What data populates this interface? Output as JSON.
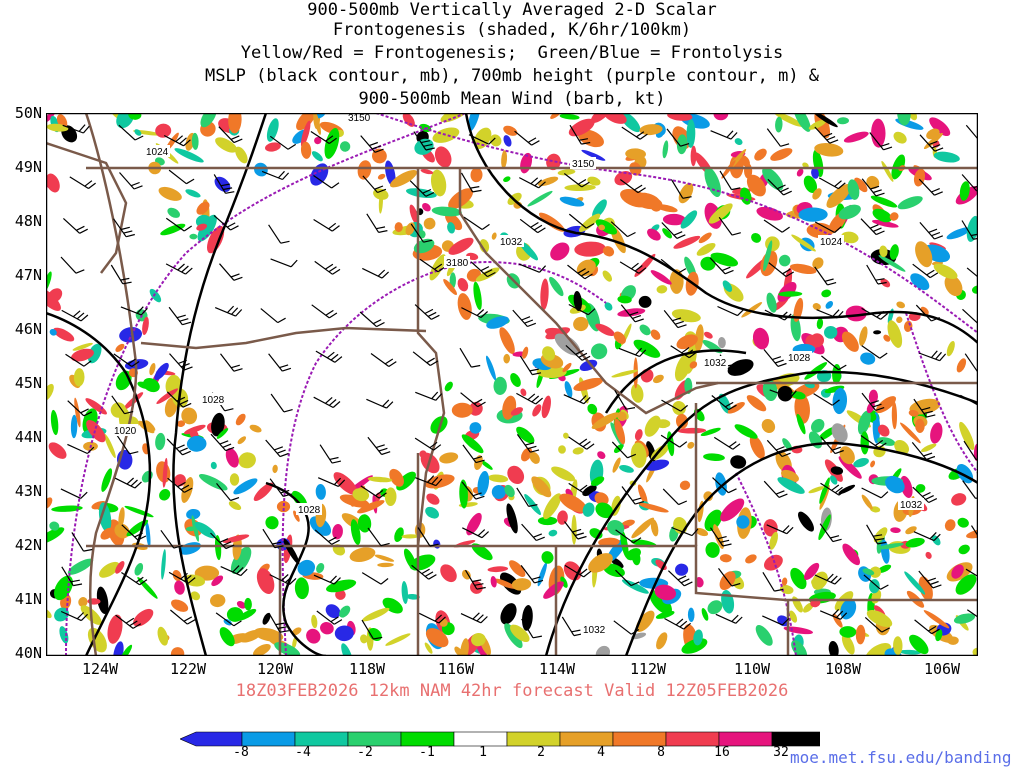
{
  "title": {
    "line1": "900-500mb Vertically Averaged 2-D Scalar",
    "line2": "Frontogenesis (shaded, K/6hr/100km)",
    "line3": "Yellow/Red = Frontogenesis;  Green/Blue = Frontolysis",
    "line4": "MSLP (black contour, mb), 700mb height (purple contour, m) &",
    "line5": "900-500mb Mean Wind (barb, kt)"
  },
  "subtitle": "18Z03FEB2026 12km NAM 42hr forecast Valid 12Z05FEB2026",
  "lat_labels": [
    "50N",
    "49N",
    "48N",
    "47N",
    "46N",
    "45N",
    "44N",
    "43N",
    "42N",
    "41N",
    "40N"
  ],
  "lon_labels": [
    "124W",
    "122W",
    "120W",
    "118W",
    "116W",
    "114W",
    "112W",
    "110W",
    "108W",
    "106W"
  ],
  "contour_labels": {
    "pressure": [
      "1024",
      "1032",
      "1024",
      "1028",
      "1032",
      "1020",
      "1028",
      "1028",
      "1032",
      "1032"
    ],
    "height": [
      "3150",
      "3150",
      "3180"
    ]
  },
  "colorbar": {
    "ticks": [
      "-8",
      "-4",
      "-2",
      "-1",
      "1",
      "2",
      "4",
      "8",
      "16",
      "32"
    ],
    "colors": [
      "#2828e6",
      "#0a9be6",
      "#10c8a0",
      "#2ad06e",
      "#00dc00",
      "#ffffff",
      "#d2d22a",
      "#e6a028",
      "#f07828",
      "#f03c50",
      "#e6147d",
      "#000000",
      "#a0a0a0"
    ]
  },
  "url": "moe.met.fsu.edu/banding",
  "colors": {
    "state_borders": "#7a5a4a",
    "mslp_contour": "#000000",
    "height_contour": "#9a1ab4",
    "subtitle_text": "#e87070",
    "url_text": "#5a6ee8"
  }
}
